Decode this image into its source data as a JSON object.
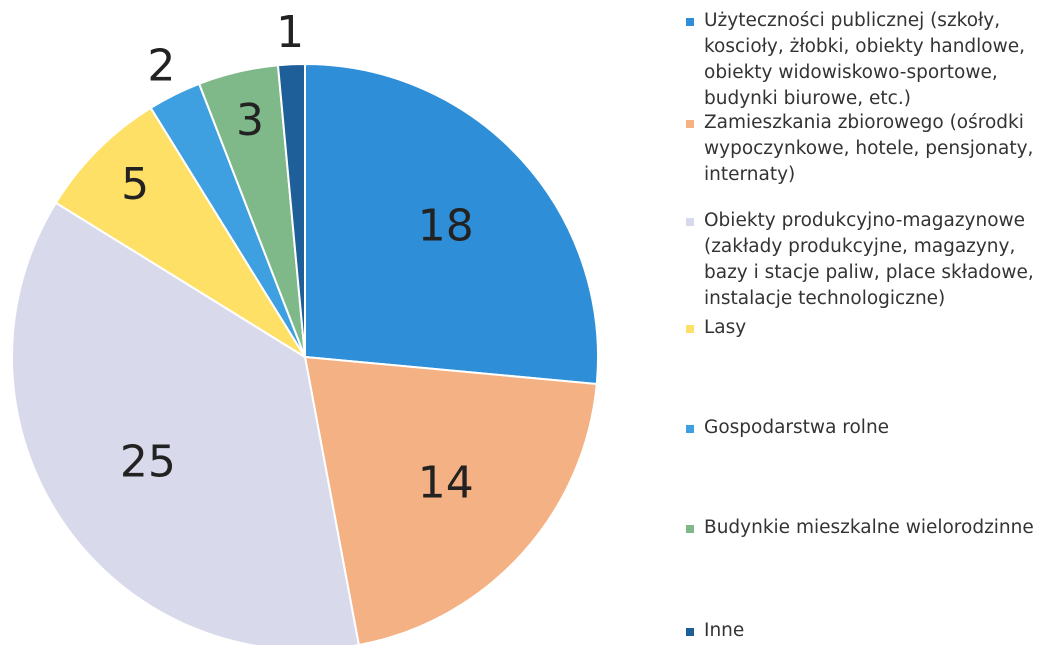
{
  "chart_data": {
    "type": "pie",
    "categories": [
      "Użyteczności publicznej (szkoły, koscioły, żłobki, obiekty handlowe, obiekty widowiskowo-sportowe, budynki biurowe, etc.)",
      "Zamieszkania zbiorowego (ośrodki wypoczynkowe, hotele, pensjonaty, internaty)",
      "Obiekty produkcyjno-magazynowe (zakłady produkcyjne, magazyny, bazy i stacje paliw, place składowe, instalacje technologiczne)",
      "Lasy",
      "Gospodarstwa rolne",
      "Budynkie mieszkalne wielorodzinne",
      "Inne"
    ],
    "values": [
      18,
      14,
      25,
      5,
      2,
      3,
      1
    ],
    "colors": [
      "#2e8fd8",
      "#f4b183",
      "#d9d9ec",
      "#ffe066",
      "#3ea0e0",
      "#7fb98a",
      "#1f5f99"
    ]
  }
}
